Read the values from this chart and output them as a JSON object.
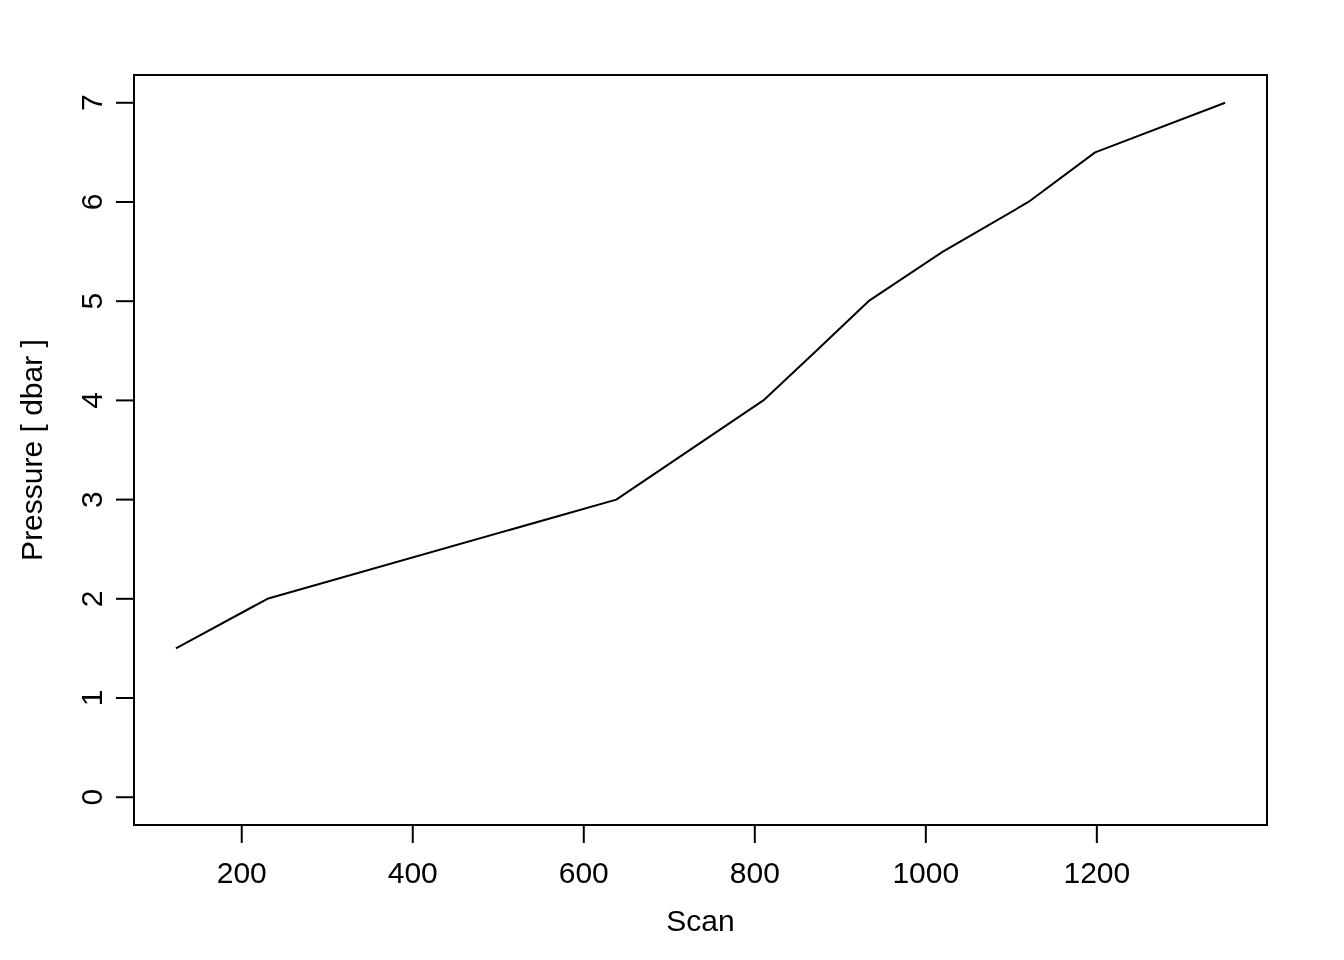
{
  "chart_data": {
    "type": "line",
    "xlabel": "Scan",
    "ylabel": "Pressure [ dbar ]",
    "x": [
      123,
      230,
      638,
      810,
      872,
      933,
      1020,
      1120,
      1198,
      1350
    ],
    "values": [
      1.5,
      2,
      3,
      4,
      4.5,
      5,
      5.5,
      6,
      6.5,
      7
    ],
    "color": "#000000",
    "line_style": "solid",
    "xlim": [
      74,
      1399
    ],
    "ylim": [
      -0.28,
      7.28
    ],
    "xticks": [
      200,
      400,
      600,
      800,
      1000,
      1200
    ],
    "yticks": [
      0,
      1,
      2,
      3,
      4,
      5,
      6,
      7
    ]
  }
}
